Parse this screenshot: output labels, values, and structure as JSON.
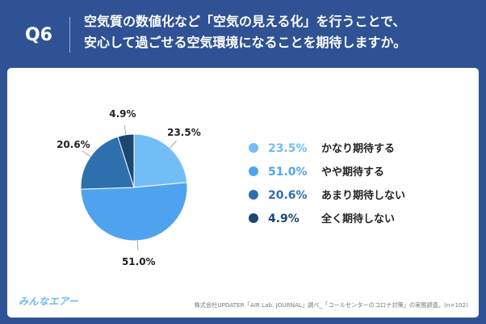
{
  "header": {
    "label": "Q6",
    "question_line1": "空気質の数値化など「空気の見える化」を行うことで、",
    "question_line2": "安心して過ごせる空気環境になることを期待しますか。"
  },
  "chart_data": {
    "type": "pie",
    "categories": [
      "かなり期待する",
      "やや期待する",
      "あまり期待しない",
      "全く期待しない"
    ],
    "values": [
      23.5,
      51.0,
      20.6,
      4.9
    ],
    "value_labels": [
      "23.5%",
      "51.0%",
      "20.6%",
      "4.9%"
    ],
    "colors": [
      "#73bdf7",
      "#4fa3ee",
      "#2e6fae",
      "#1a4872"
    ],
    "start": "12 o'clock",
    "direction": "clockwise",
    "legend_position": "right"
  },
  "footer": {
    "brand": "みんなエアー",
    "source": "株式会社UPDATER「AIR Lab. JOURNAL」調べ_「コールセンターのコロナ対策」の実態調査。(n=102)"
  }
}
